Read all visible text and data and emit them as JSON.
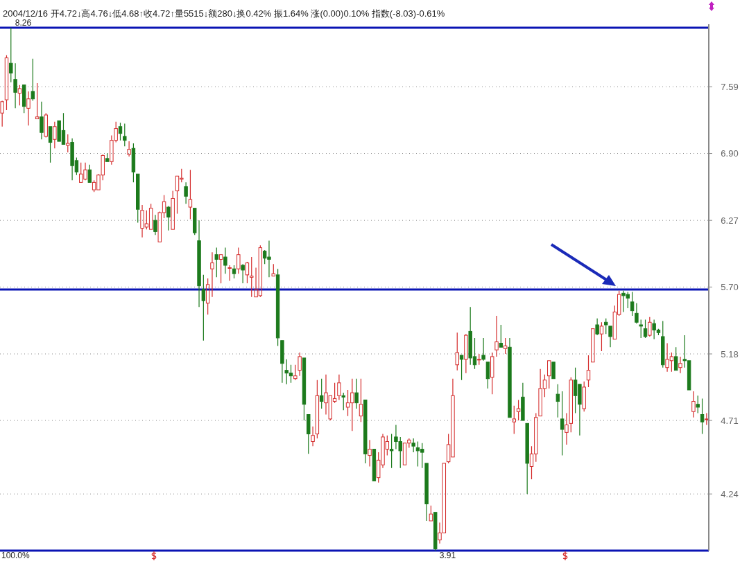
{
  "chart_data": {
    "type": "candlestick",
    "log": "y",
    "grid": "y",
    "ylim": [
      3.91,
      8.3
    ],
    "yticks": [
      4.24,
      4.71,
      5.18,
      {
        "value": 5.7,
        "label": "5.70"
      },
      6.27,
      {
        "value": 6.9,
        "label": "6.90"
      },
      7.59
    ],
    "categories": [
      null,
      null,
      null,
      null,
      null,
      null,
      null,
      null,
      null,
      null,
      null,
      null,
      null,
      null,
      null,
      null,
      null,
      null,
      null,
      null,
      null,
      null,
      null,
      null,
      null,
      null,
      null,
      null,
      null,
      null,
      null,
      null,
      null,
      null,
      null,
      null,
      null,
      null,
      null,
      null,
      null,
      null,
      null,
      null,
      null,
      null,
      null,
      null,
      null,
      null,
      null,
      null,
      null,
      null,
      null,
      null,
      null,
      null,
      null,
      null,
      null,
      null,
      null,
      null,
      null,
      null,
      null,
      null,
      null,
      null,
      null,
      null,
      null,
      null,
      null,
      null,
      null,
      null,
      null,
      null,
      null,
      null,
      null,
      null,
      null,
      null,
      null,
      null,
      null,
      null,
      null,
      null,
      null,
      null,
      null,
      null,
      null,
      null,
      null,
      null,
      null,
      null,
      null,
      null,
      null,
      null,
      null,
      null,
      null,
      null,
      null,
      null,
      null,
      null,
      null,
      null,
      null,
      null,
      null,
      null,
      null,
      null,
      null,
      null,
      null,
      null,
      null,
      null,
      null,
      null,
      null,
      null,
      null,
      null,
      null,
      null,
      null,
      null,
      null,
      null,
      null,
      null,
      null,
      null,
      null,
      null,
      null,
      null,
      null,
      null,
      null,
      null,
      null,
      null,
      null,
      null,
      null,
      null,
      null,
      null,
      null,
      null
    ],
    "ohlc": [
      [
        7.31,
        7.44,
        7.17,
        7.43
      ],
      [
        7.45,
        7.94,
        7.34,
        7.91
      ],
      [
        7.85,
        8.26,
        7.64,
        7.74
      ],
      [
        7.67,
        7.85,
        7.36,
        7.53
      ],
      [
        7.52,
        7.61,
        7.39,
        7.57
      ],
      [
        7.61,
        7.61,
        7.31,
        7.38
      ],
      [
        7.36,
        7.54,
        7.18,
        7.46
      ],
      [
        7.54,
        7.9,
        7.44,
        7.46
      ],
      [
        7.25,
        7.63,
        7.25,
        7.27
      ],
      [
        7.27,
        7.43,
        7.04,
        7.11
      ],
      [
        7.07,
        7.31,
        7.06,
        7.29
      ],
      [
        7.17,
        7.17,
        6.81,
        7.01
      ],
      [
        7.04,
        7.22,
        6.95,
        7.17
      ],
      [
        7.23,
        7.23,
        7.02,
        7.02
      ],
      [
        7.13,
        7.31,
        6.99,
        6.99
      ],
      [
        6.98,
        7.09,
        6.91,
        7.0
      ],
      [
        7.01,
        7.05,
        6.64,
        6.78
      ],
      [
        6.83,
        6.86,
        6.69,
        6.72
      ],
      [
        6.62,
        6.81,
        6.62,
        6.7
      ],
      [
        6.65,
        6.81,
        6.64,
        6.74
      ],
      [
        6.74,
        6.79,
        6.62,
        6.62
      ],
      [
        6.55,
        6.64,
        6.53,
        6.62
      ],
      [
        6.55,
        6.7,
        6.55,
        6.69
      ],
      [
        6.69,
        6.89,
        6.64,
        6.88
      ],
      [
        6.85,
        6.9,
        6.82,
        6.82
      ],
      [
        6.82,
        7.08,
        6.79,
        7.03
      ],
      [
        7.03,
        7.22,
        7.01,
        7.15
      ],
      [
        7.17,
        7.21,
        7.03,
        7.1
      ],
      [
        7.07,
        7.2,
        6.97,
        7.03
      ],
      [
        6.89,
        7.02,
        6.87,
        6.94
      ],
      [
        6.95,
        7.0,
        6.62,
        6.72
      ],
      [
        6.7,
        6.7,
        6.25,
        6.37
      ],
      [
        6.2,
        6.41,
        6.12,
        6.36
      ],
      [
        6.21,
        6.36,
        6.19,
        6.24
      ],
      [
        6.19,
        6.42,
        6.19,
        6.38
      ],
      [
        6.27,
        6.32,
        6.14,
        6.17
      ],
      [
        6.08,
        6.35,
        6.08,
        6.34
      ],
      [
        6.34,
        6.5,
        6.29,
        6.44
      ],
      [
        6.39,
        6.4,
        6.18,
        6.3
      ],
      [
        6.19,
        6.54,
        6.19,
        6.47
      ],
      [
        6.54,
        6.68,
        6.33,
        6.68
      ],
      [
        6.65,
        6.75,
        6.62,
        6.66
      ],
      [
        6.58,
        6.62,
        6.42,
        6.49
      ],
      [
        6.39,
        6.74,
        6.28,
        6.46
      ],
      [
        6.38,
        6.38,
        6.14,
        6.16
      ],
      [
        6.09,
        6.27,
        5.54,
        5.71
      ],
      [
        5.68,
        5.8,
        5.28,
        5.59
      ],
      [
        5.57,
        5.77,
        5.48,
        5.72
      ],
      [
        5.85,
        5.99,
        5.62,
        5.9
      ],
      [
        5.97,
        6.03,
        5.78,
        5.93
      ],
      [
        5.93,
        5.97,
        5.73,
        5.97
      ],
      [
        5.95,
        6.03,
        5.81,
        5.88
      ],
      [
        5.86,
        5.88,
        5.75,
        5.86
      ],
      [
        5.85,
        5.88,
        5.77,
        5.81
      ],
      [
        5.85,
        6.03,
        5.81,
        5.97
      ],
      [
        5.88,
        5.89,
        5.73,
        5.84
      ],
      [
        5.8,
        5.91,
        5.73,
        5.9
      ],
      [
        5.78,
        5.95,
        5.62,
        5.79
      ],
      [
        5.62,
        5.86,
        5.62,
        5.68
      ],
      [
        5.63,
        6.05,
        5.62,
        6.03
      ],
      [
        6.0,
        6.01,
        5.89,
        5.94
      ],
      [
        5.95,
        6.09,
        5.78,
        5.93
      ],
      [
        5.79,
        5.89,
        5.79,
        5.81
      ],
      [
        5.8,
        5.85,
        5.24,
        5.3
      ],
      [
        5.28,
        5.28,
        4.97,
        5.11
      ],
      [
        5.06,
        5.14,
        4.96,
        5.04
      ],
      [
        5.04,
        5.1,
        4.97,
        5.02
      ],
      [
        5.0,
        5.1,
        4.99,
        5.02
      ],
      [
        5.06,
        5.19,
        5.02,
        5.16
      ],
      [
        5.15,
        5.15,
        4.71,
        4.82
      ],
      [
        4.75,
        4.75,
        4.49,
        4.62
      ],
      [
        4.57,
        4.67,
        4.54,
        4.61
      ],
      [
        4.62,
        4.99,
        4.59,
        4.88
      ],
      [
        4.88,
        5.0,
        4.79,
        4.84
      ],
      [
        4.83,
        5.03,
        4.75,
        4.9
      ],
      [
        4.72,
        4.88,
        4.71,
        4.88
      ],
      [
        4.84,
        4.97,
        4.83,
        4.86
      ],
      [
        4.88,
        5.03,
        4.85,
        4.97
      ],
      [
        4.88,
        4.9,
        4.78,
        4.87
      ],
      [
        4.8,
        4.92,
        4.74,
        4.83
      ],
      [
        4.83,
        5.0,
        4.64,
        4.9
      ],
      [
        4.9,
        5.0,
        4.79,
        4.83
      ],
      [
        4.74,
        5.0,
        4.7,
        4.82
      ],
      [
        4.85,
        4.85,
        4.43,
        4.49
      ],
      [
        4.48,
        4.58,
        4.41,
        4.52
      ],
      [
        4.52,
        4.52,
        4.32,
        4.32
      ],
      [
        4.34,
        4.5,
        4.31,
        4.45
      ],
      [
        4.42,
        4.62,
        4.4,
        4.6
      ],
      [
        4.52,
        4.61,
        4.48,
        4.57
      ],
      [
        4.52,
        4.62,
        4.4,
        4.51
      ],
      [
        4.6,
        4.68,
        4.52,
        4.57
      ],
      [
        4.57,
        4.6,
        4.4,
        4.51
      ],
      [
        4.42,
        4.56,
        4.42,
        4.56
      ],
      [
        4.56,
        4.59,
        4.53,
        4.58
      ],
      [
        4.56,
        4.59,
        4.5,
        4.54
      ],
      [
        4.53,
        4.57,
        4.41,
        4.51
      ],
      [
        4.52,
        4.56,
        4.4,
        4.5
      ],
      [
        4.43,
        4.43,
        4.08,
        4.18
      ],
      [
        4.08,
        4.17,
        4.08,
        4.12
      ],
      [
        4.13,
        4.13,
        3.91,
        3.92
      ],
      [
        3.97,
        4.07,
        3.95,
        4.01
      ],
      [
        4.01,
        4.43,
        4.01,
        4.43
      ],
      [
        4.44,
        4.62,
        4.43,
        4.55
      ],
      [
        4.47,
        5.0,
        4.47,
        4.88
      ],
      [
        5.1,
        5.34,
        5.06,
        5.19
      ],
      [
        5.17,
        5.17,
        4.99,
        5.14
      ],
      [
        5.14,
        5.33,
        5.04,
        5.32
      ],
      [
        5.35,
        5.54,
        5.1,
        5.15
      ],
      [
        5.16,
        5.3,
        5.07,
        5.1
      ],
      [
        5.14,
        5.18,
        5.1,
        5.14
      ],
      [
        5.17,
        5.3,
        5.13,
        5.14
      ],
      [
        5.12,
        5.12,
        4.93,
        5.0
      ],
      [
        5.01,
        5.19,
        4.89,
        5.16
      ],
      [
        5.21,
        5.47,
        5.16,
        5.27
      ],
      [
        5.26,
        5.4,
        5.23,
        5.23
      ],
      [
        5.22,
        5.3,
        5.18,
        5.24
      ],
      [
        5.23,
        5.3,
        4.73,
        4.73
      ],
      [
        4.7,
        4.81,
        4.62,
        4.72
      ],
      [
        4.77,
        4.85,
        4.71,
        4.79
      ],
      [
        4.87,
        4.97,
        4.71,
        4.71
      ],
      [
        4.69,
        4.69,
        4.24,
        4.43
      ],
      [
        4.41,
        4.54,
        4.33,
        4.49
      ],
      [
        4.49,
        4.76,
        4.44,
        4.73
      ],
      [
        4.74,
        5.07,
        4.74,
        4.93
      ],
      [
        4.93,
        5.03,
        4.87,
        4.99
      ],
      [
        5.02,
        5.13,
        4.93,
        5.13
      ],
      [
        5.12,
        5.12,
        5.0,
        5.0
      ],
      [
        4.89,
        4.96,
        4.73,
        4.84
      ],
      [
        4.72,
        4.91,
        4.48,
        4.65
      ],
      [
        4.63,
        4.76,
        4.55,
        4.68
      ],
      [
        4.69,
        5.01,
        4.63,
        4.99
      ],
      [
        4.99,
        5.08,
        4.76,
        4.88
      ],
      [
        4.96,
        4.96,
        4.61,
        4.82
      ],
      [
        4.79,
        4.98,
        4.77,
        4.94
      ],
      [
        4.99,
        5.17,
        4.94,
        5.06
      ],
      [
        5.12,
        5.37,
        5.12,
        5.37
      ],
      [
        5.4,
        5.45,
        5.32,
        5.33
      ],
      [
        5.33,
        5.42,
        5.2,
        5.39
      ],
      [
        5.42,
        5.45,
        5.33,
        5.4
      ],
      [
        5.39,
        5.39,
        5.23,
        5.31
      ],
      [
        5.29,
        5.55,
        5.29,
        5.5
      ],
      [
        5.48,
        5.67,
        5.47,
        5.64
      ],
      [
        5.65,
        5.67,
        5.5,
        5.63
      ],
      [
        5.64,
        5.66,
        5.53,
        5.61
      ],
      [
        5.58,
        5.66,
        5.47,
        5.51
      ],
      [
        5.49,
        5.57,
        5.41,
        5.42
      ],
      [
        5.4,
        5.44,
        5.3,
        5.39
      ],
      [
        5.37,
        5.44,
        5.3,
        5.31
      ],
      [
        5.32,
        5.46,
        5.31,
        5.42
      ],
      [
        5.41,
        5.44,
        5.29,
        5.36
      ],
      [
        5.36,
        5.37,
        5.32,
        5.34
      ],
      [
        5.31,
        5.43,
        5.08,
        5.1
      ],
      [
        5.08,
        5.26,
        5.05,
        5.14
      ],
      [
        5.13,
        5.19,
        5.05,
        5.16
      ],
      [
        5.16,
        5.23,
        5.06,
        5.06
      ],
      [
        5.08,
        5.16,
        5.04,
        5.11
      ],
      [
        5.14,
        5.32,
        5.08,
        5.13
      ],
      [
        5.13,
        5.13,
        4.92,
        4.92
      ],
      [
        4.77,
        4.91,
        4.73,
        4.84
      ],
      [
        4.82,
        4.88,
        4.76,
        4.8
      ],
      [
        4.75,
        4.86,
        4.62,
        4.7
      ],
      [
        4.72,
        4.76,
        4.68,
        4.72
      ]
    ],
    "ref_lines": [
      {
        "axis": "y",
        "value": 8.26,
        "color": "#0a14b4"
      },
      {
        "axis": "y",
        "value": 5.68,
        "color": "#0a14b4"
      },
      {
        "axis": "y",
        "value": 3.91,
        "color": "#0a14b4"
      }
    ],
    "annotations": [
      "2004/12/16 开4.72↓高4.76↓低4.68↑收4.72↑量5515↓额280↓换0.42% 振1.64% 涨(0.00)0.10% 指数(-8.03)-0.61%",
      "100.0%",
      {
        "text": "8.26",
        "y": 8.26
      },
      {
        "text": "3.91",
        "y": 3.91
      }
    ]
  }
}
